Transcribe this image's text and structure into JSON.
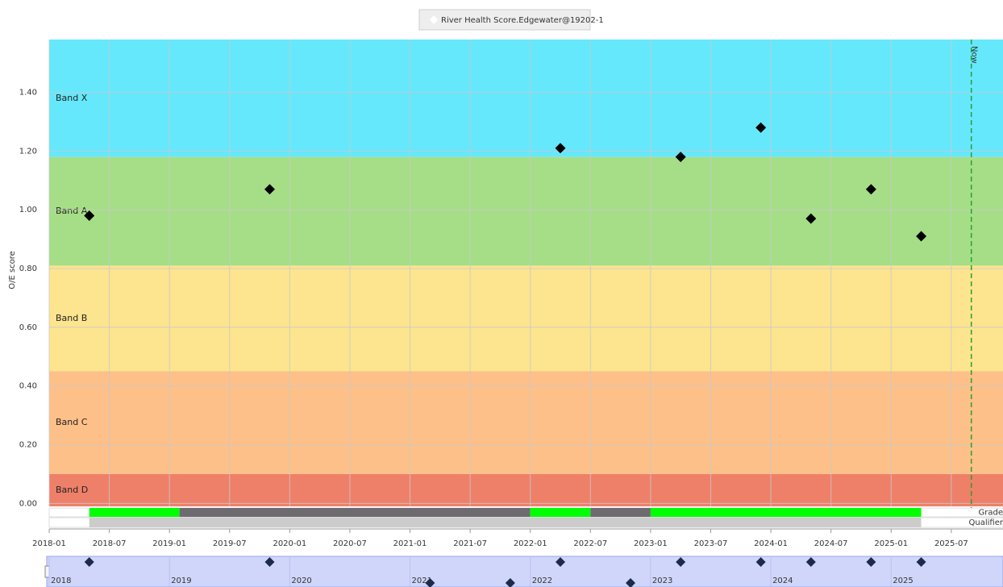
{
  "chart_data": {
    "type": "scatter",
    "legend": "River Health Score.Edgewater@19202-1",
    "y_label": "O/E score",
    "x": [
      "2018-05",
      "2019-11",
      "2022-04",
      "2023-04",
      "2023-12",
      "2024-05",
      "2024-11",
      "2025-04"
    ],
    "values": [
      0.98,
      1.07,
      1.21,
      1.18,
      1.28,
      0.97,
      1.07,
      0.91
    ],
    "color": "#000000",
    "xlim": [
      "2018-01",
      "2025-12"
    ],
    "xticks": [
      "2018-01",
      "2018-07",
      "2019-01",
      "2019-07",
      "2020-01",
      "2020-07",
      "2021-01",
      "2021-07",
      "2022-01",
      "2022-07",
      "2023-01",
      "2023-07",
      "2024-01",
      "2024-07",
      "2025-01",
      "2025-07"
    ],
    "ylim": [
      -0.01,
      1.58
    ],
    "yticks": [
      {
        "value": 0,
        "label": "0.00"
      },
      {
        "value": 0.2,
        "label": "0.20"
      },
      {
        "value": 0.4,
        "label": "0.40"
      },
      {
        "value": 0.6,
        "label": "0.60"
      },
      {
        "value": 0.8,
        "label": "0.80"
      },
      {
        "value": 1.0,
        "label": "1.00"
      },
      {
        "value": 1.2,
        "label": "1.20"
      },
      {
        "value": 1.4,
        "label": "1.40"
      }
    ],
    "grid": true,
    "bands": [
      {
        "label": "Band D",
        "from": 0,
        "to": 0.1,
        "color": "#ee806a"
      },
      {
        "label": "Band C",
        "from": 0.1,
        "to": 0.45,
        "color": "#fdc088"
      },
      {
        "label": "Band B",
        "from": 0.45,
        "to": 0.81,
        "color": "#fde48f"
      },
      {
        "label": "Band A",
        "from": 0.81,
        "to": 1.18,
        "color": "#a6de87"
      },
      {
        "label": "Band X",
        "from": 1.18,
        "to": 1.58,
        "color": "#66e8fc"
      }
    ],
    "now": {
      "label": "Now",
      "x": "2025-09",
      "color": "#2aa02a"
    },
    "grade": {
      "label": "Grade",
      "segments": [
        {
          "start": "2018-05",
          "end": "2019-02",
          "color": "#00ff00"
        },
        {
          "start": "2019-02",
          "end": "2022-01",
          "color": "#6d6b70"
        },
        {
          "start": "2022-01",
          "end": "2022-07",
          "color": "#00ff00"
        },
        {
          "start": "2022-07",
          "end": "2023-01",
          "color": "#6d6b70"
        },
        {
          "start": "2023-01",
          "end": "2025-04",
          "color": "#00ff00"
        }
      ]
    },
    "qualifier": {
      "label": "Qualifier",
      "segments": [
        {
          "start": "2018-05",
          "end": "2025-04",
          "color": "#cccccc"
        }
      ]
    },
    "navigator": {
      "years": [
        "2018",
        "2019",
        "2020",
        "2021",
        "2022",
        "2023",
        "2024",
        "2025"
      ],
      "extra_x": [
        "2021-03",
        "2021-11",
        "2022-11"
      ]
    }
  }
}
